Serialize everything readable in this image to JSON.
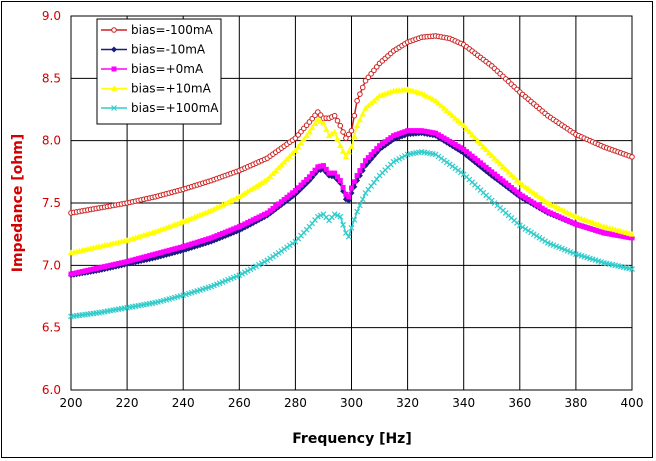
{
  "chart_data": {
    "type": "line",
    "title": "",
    "xlabel": "Frequency [Hz]",
    "ylabel": "Impedance [ohm]",
    "xlim": [
      200,
      400
    ],
    "ylim": [
      6.0,
      9.0
    ],
    "xticks": [
      "200",
      "220",
      "240",
      "260",
      "280",
      "300",
      "320",
      "340",
      "360",
      "380",
      "400"
    ],
    "yticks": [
      "6.0",
      "6.5",
      "7.0",
      "7.5",
      "8.0",
      "8.5",
      "9.0"
    ],
    "grid": true,
    "legend_position": "top-left",
    "series": [
      {
        "name": "bias=-100mA",
        "color": "#cc2222",
        "marker": "circle-open",
        "x": [
          200,
          210,
          220,
          230,
          240,
          250,
          260,
          270,
          280,
          285,
          288,
          290,
          292,
          294,
          296,
          298,
          300,
          302,
          305,
          310,
          315,
          320,
          325,
          330,
          335,
          340,
          350,
          360,
          370,
          380,
          390,
          400
        ],
        "y": [
          7.42,
          7.46,
          7.5,
          7.55,
          7.61,
          7.68,
          7.76,
          7.86,
          8.02,
          8.15,
          8.23,
          8.18,
          8.18,
          8.2,
          8.12,
          8.02,
          8.08,
          8.32,
          8.48,
          8.62,
          8.72,
          8.79,
          8.83,
          8.84,
          8.82,
          8.77,
          8.6,
          8.39,
          8.2,
          8.05,
          7.95,
          7.87
        ]
      },
      {
        "name": "bias=-10mA",
        "color": "#1a1a80",
        "marker": "diamond",
        "x": [
          200,
          210,
          220,
          230,
          240,
          250,
          260,
          270,
          280,
          285,
          288,
          290,
          292,
          294,
          296,
          298,
          299,
          300,
          302,
          305,
          310,
          315,
          320,
          325,
          330,
          340,
          350,
          360,
          370,
          380,
          390,
          400
        ],
        "y": [
          6.92,
          6.96,
          7.01,
          7.06,
          7.12,
          7.19,
          7.28,
          7.4,
          7.57,
          7.68,
          7.76,
          7.77,
          7.72,
          7.71,
          7.66,
          7.53,
          7.52,
          7.58,
          7.68,
          7.8,
          7.93,
          8.01,
          8.05,
          8.06,
          8.04,
          7.9,
          7.72,
          7.55,
          7.42,
          7.33,
          7.26,
          7.22
        ]
      },
      {
        "name": "bias=+0mA",
        "color": "#ff00ff",
        "marker": "square",
        "x": [
          200,
          210,
          220,
          230,
          240,
          250,
          260,
          270,
          280,
          285,
          288,
          290,
          292,
          294,
          296,
          298,
          299,
          300,
          302,
          305,
          310,
          315,
          320,
          325,
          330,
          340,
          350,
          360,
          370,
          380,
          390,
          400
        ],
        "y": [
          6.93,
          6.98,
          7.03,
          7.09,
          7.15,
          7.22,
          7.31,
          7.42,
          7.6,
          7.71,
          7.79,
          7.8,
          7.74,
          7.74,
          7.68,
          7.57,
          7.55,
          7.62,
          7.72,
          7.84,
          7.96,
          8.04,
          8.08,
          8.08,
          8.06,
          7.93,
          7.75,
          7.57,
          7.43,
          7.33,
          7.26,
          7.22
        ]
      },
      {
        "name": "bias=+10mA",
        "color": "#ffff00",
        "marker": "triangle",
        "x": [
          200,
          210,
          220,
          230,
          240,
          250,
          260,
          270,
          280,
          285,
          288,
          290,
          292,
          294,
          296,
          298,
          300,
          302,
          305,
          310,
          315,
          320,
          325,
          330,
          340,
          350,
          360,
          370,
          380,
          390,
          400
        ],
        "y": [
          7.1,
          7.15,
          7.2,
          7.27,
          7.35,
          7.44,
          7.55,
          7.69,
          7.92,
          8.07,
          8.17,
          8.14,
          8.04,
          8.07,
          7.96,
          7.87,
          7.95,
          8.12,
          8.26,
          8.36,
          8.4,
          8.41,
          8.38,
          8.32,
          8.12,
          7.88,
          7.66,
          7.5,
          7.39,
          7.31,
          7.25
        ]
      },
      {
        "name": "bias=+100mA",
        "color": "#33cccc",
        "marker": "x",
        "x": [
          200,
          210,
          220,
          230,
          240,
          250,
          260,
          270,
          280,
          285,
          288,
          290,
          292,
          294,
          296,
          298,
          299,
          300,
          302,
          305,
          310,
          315,
          320,
          325,
          330,
          340,
          350,
          360,
          370,
          380,
          390,
          400
        ],
        "y": [
          6.59,
          6.62,
          6.66,
          6.7,
          6.76,
          6.83,
          6.92,
          7.04,
          7.19,
          7.31,
          7.39,
          7.41,
          7.36,
          7.41,
          7.39,
          7.26,
          7.23,
          7.3,
          7.43,
          7.58,
          7.72,
          7.83,
          7.89,
          7.91,
          7.89,
          7.73,
          7.52,
          7.32,
          7.18,
          7.09,
          7.02,
          6.97
        ]
      }
    ]
  }
}
